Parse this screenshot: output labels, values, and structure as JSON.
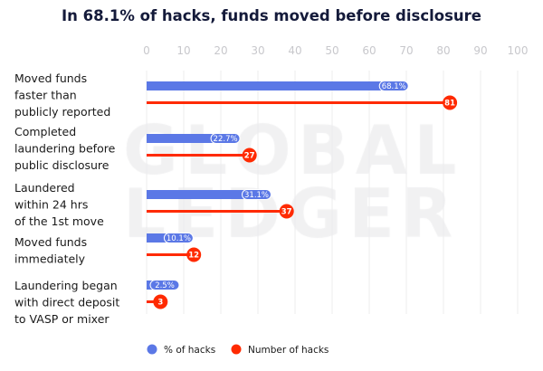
{
  "chart_data": {
    "type": "bar",
    "title": "In 68.1% of hacks, funds moved before disclosure",
    "xlim": [
      0,
      100
    ],
    "xticks": [
      0,
      10,
      20,
      30,
      40,
      50,
      60,
      70,
      80,
      90,
      100
    ],
    "grid": true,
    "legend_placement": "bottom",
    "categories": [
      [
        "Moved funds",
        "faster than",
        "publicly reported"
      ],
      [
        "Completed",
        "laundering before",
        "public disclosure"
      ],
      [
        "Laundered",
        "within 24 hrs",
        "of the 1st move"
      ],
      [
        "Moved funds",
        "immediately"
      ],
      [
        "Laundering began",
        "with direct deposit",
        "to VASP or mixer"
      ]
    ],
    "series": [
      {
        "name": "% of hacks",
        "color": "#5b78e6",
        "values": [
          68.1,
          22.7,
          31.1,
          10.1,
          2.5
        ],
        "labels": [
          "68.1%",
          "22.7%",
          "31.1%",
          "10.1%",
          "2.5%"
        ]
      },
      {
        "name": "Number of hacks",
        "color": "#ff2a00",
        "values": [
          81,
          27,
          37,
          12,
          3
        ],
        "labels": [
          "81",
          "27",
          "37",
          "12",
          "3"
        ]
      }
    ],
    "watermark": [
      "GLOBAL",
      "LEDGER"
    ]
  }
}
